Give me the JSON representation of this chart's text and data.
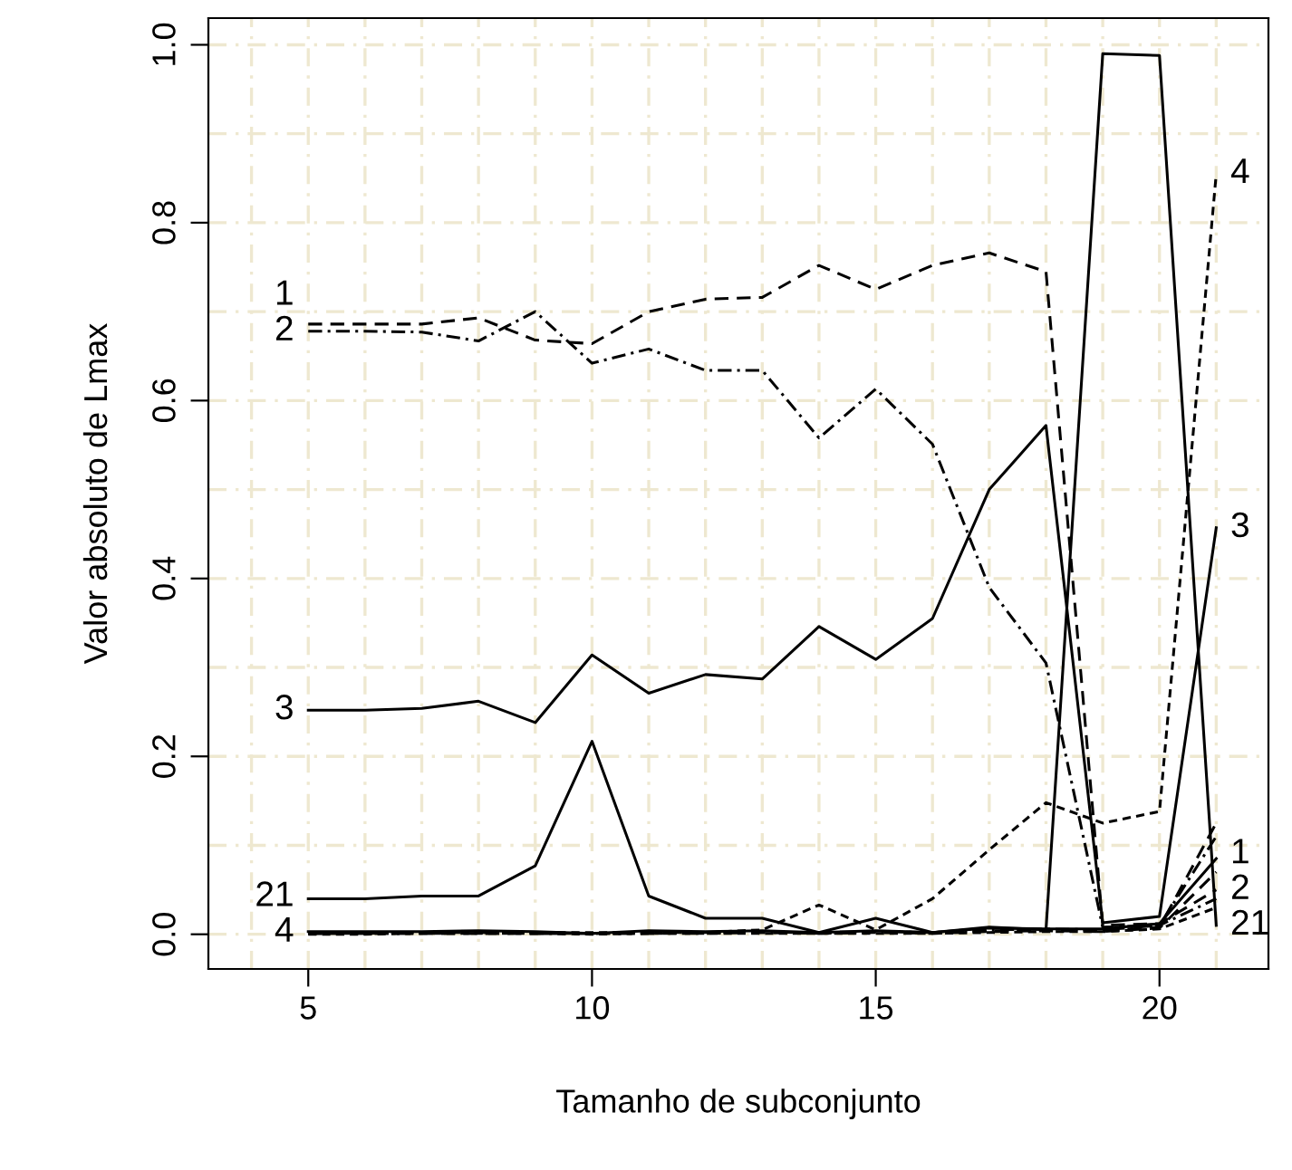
{
  "chart_data": {
    "type": "line",
    "xlabel": "Tamanho de subconjunto",
    "ylabel": "Valor absoluto de Lmax",
    "x": [
      5,
      6,
      7,
      8,
      9,
      10,
      11,
      12,
      13,
      14,
      15,
      16,
      17,
      18,
      19,
      20,
      21
    ],
    "xlim": [
      3.24,
      21.92
    ],
    "ylim": [
      -0.039,
      1.03
    ],
    "xticks": [
      5,
      10,
      15,
      20
    ],
    "yticks": [
      {
        "value": 0,
        "label": "0.0"
      },
      {
        "value": 0.2,
        "label": "0.2"
      },
      {
        "value": 0.4,
        "label": "0.4"
      },
      {
        "value": 0.6,
        "label": "0.6"
      },
      {
        "value": 0.8,
        "label": "0.8"
      },
      {
        "value": 1.0,
        "label": "1.0"
      }
    ],
    "grid": true,
    "legend": false,
    "series": [
      {
        "name": "1",
        "color": "#000000",
        "line_style": "dashed",
        "values": [
          0.686,
          0.686,
          0.686,
          0.693,
          0.668,
          0.664,
          0.7,
          0.714,
          0.716,
          0.752,
          0.725,
          0.752,
          0.766,
          0.745,
          0.01,
          0.012,
          0.05
        ]
      },
      {
        "name": "2",
        "color": "#000000",
        "line_style": "dashdot",
        "values": [
          0.678,
          0.678,
          0.677,
          0.667,
          0.7,
          0.642,
          0.658,
          0.634,
          0.634,
          0.558,
          0.613,
          0.551,
          0.39,
          0.305,
          0.008,
          0.01,
          0.04
        ]
      },
      {
        "name": "3",
        "color": "#000000",
        "line_style": "solid",
        "values": [
          0.252,
          0.252,
          0.254,
          0.262,
          0.238,
          0.314,
          0.271,
          0.292,
          0.287,
          0.346,
          0.309,
          0.355,
          0.5,
          0.572,
          0.013,
          0.02,
          0.457
        ]
      },
      {
        "name": "21",
        "color": "#000000",
        "line_style": "solid",
        "values": [
          0.04,
          0.04,
          0.043,
          0.043,
          0.077,
          0.217,
          0.043,
          0.018,
          0.018,
          0.002,
          0.018,
          0.002,
          0.008,
          0.005,
          0.99,
          0.988,
          0.01
        ]
      },
      {
        "name": "4",
        "color": "#000000",
        "line_style": "dotted",
        "values": [
          0.002,
          0.002,
          0.002,
          0.002,
          0.002,
          0.002,
          0.002,
          0.002,
          0.005,
          0.033,
          0.005,
          0.04,
          0.095,
          0.148,
          0.125,
          0.138,
          0.855
        ]
      },
      {
        "color": "#000000",
        "line_style": "dashed",
        "values": [
          0.001,
          0.001,
          0.001,
          0.001,
          0.001,
          0.001,
          0.001,
          0.002,
          0.002,
          0.002,
          0.003,
          0.002,
          0.004,
          0.005,
          0.004,
          0.008,
          0.125
        ]
      },
      {
        "color": "#000000",
        "line_style": "dashdot",
        "values": [
          0.001,
          0.001,
          0.002,
          0.002,
          0.001,
          0.001,
          0.002,
          0.002,
          0.003,
          0.001,
          0.003,
          0.002,
          0.005,
          0.006,
          0.005,
          0.01,
          0.11
        ]
      },
      {
        "color": "#000000",
        "line_style": "solid",
        "values": [
          0.003,
          0.003,
          0.003,
          0.004,
          0.003,
          0.001,
          0.004,
          0.003,
          0.004,
          0.002,
          0.004,
          0.002,
          0.007,
          0.006,
          0.006,
          0.012,
          0.085
        ]
      },
      {
        "color": "#000000",
        "line_style": "dashed",
        "values": [
          0.001,
          0.001,
          0.001,
          0.001,
          0.001,
          0.001,
          0.001,
          0.001,
          0.002,
          0.001,
          0.002,
          0.001,
          0.003,
          0.004,
          0.003,
          0.007,
          0.07
        ]
      },
      {
        "color": "#000000",
        "line_style": "dotted",
        "values": [
          0.0,
          0.0,
          0.001,
          0.001,
          0.001,
          0.0,
          0.001,
          0.001,
          0.001,
          0.001,
          0.001,
          0.001,
          0.002,
          0.003,
          0.003,
          0.006,
          0.03
        ]
      }
    ]
  }
}
